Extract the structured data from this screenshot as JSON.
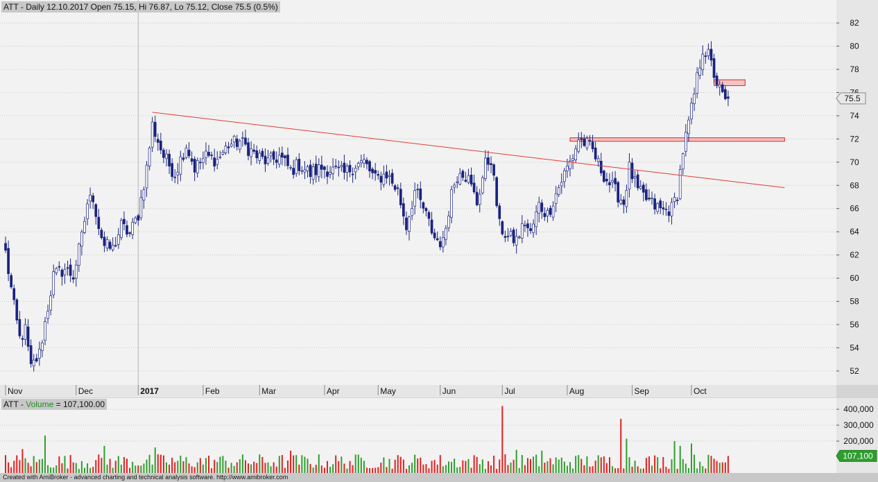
{
  "header": {
    "title": "ATT - Daily 12.10.2017 Open 75.15, Hi 76.87, Lo 75.12, Close 75.5 (0.5%)"
  },
  "volume_header": {
    "symbol": "ATT",
    "sep": " - ",
    "label": "Volume",
    "value_text": " = 107,100.00"
  },
  "status_bar": "Created with AmiBroker - advanced charting and technical analysis software. http://www.amibroker.com",
  "price_badge": "75.5",
  "volume_badge": "107,100",
  "colors": {
    "up_body": "#ffffff",
    "down_body": "#1a237e",
    "wick": "#1a237e",
    "trendline": "#e53935",
    "vol_up": "#2e9e2e",
    "vol_down": "#e02020",
    "grid": "#c9c9c9"
  },
  "chart_data": [
    {
      "type": "candlestick",
      "title": "ATT - Daily 12.10.2017 Open 75.15, Hi 76.87, Lo 75.12, Close 75.5 (0.5%)",
      "ylim": [
        50.8,
        83.5
      ],
      "y_ticks": [
        52,
        54,
        56,
        58,
        60,
        62,
        64,
        66,
        68,
        70,
        72,
        74,
        76,
        78,
        80,
        82
      ],
      "x_labels": [
        {
          "label": "Nov",
          "bar": 0,
          "bold": false
        },
        {
          "label": "Dec",
          "bar": 25,
          "bold": false
        },
        {
          "label": "2017",
          "bar": 47,
          "bold": true
        },
        {
          "label": "Feb",
          "bar": 70,
          "bold": false
        },
        {
          "label": "Mar",
          "bar": 90,
          "bold": false
        },
        {
          "label": "Apr",
          "bar": 113,
          "bold": false
        },
        {
          "label": "May",
          "bar": 132,
          "bold": false
        },
        {
          "label": "Jun",
          "bar": 154,
          "bold": false
        },
        {
          "label": "Jul",
          "bar": 176,
          "bold": false
        },
        {
          "label": "Aug",
          "bar": 199,
          "bold": false
        },
        {
          "label": "Sep",
          "bar": 222,
          "bold": false
        },
        {
          "label": "Oct",
          "bar": 243,
          "bold": false
        }
      ],
      "anchors": [
        {
          "bar": 0,
          "price": 62.2
        },
        {
          "bar": 3,
          "price": 57.5
        },
        {
          "bar": 5,
          "price": 54.8
        },
        {
          "bar": 7,
          "price": 55.5
        },
        {
          "bar": 9,
          "price": 52.2
        },
        {
          "bar": 12,
          "price": 53.5
        },
        {
          "bar": 15,
          "price": 57.5
        },
        {
          "bar": 17,
          "price": 60.2
        },
        {
          "bar": 21,
          "price": 60.8
        },
        {
          "bar": 24,
          "price": 60.2
        },
        {
          "bar": 27,
          "price": 63.5
        },
        {
          "bar": 29,
          "price": 66.5
        },
        {
          "bar": 31,
          "price": 67.0
        },
        {
          "bar": 33,
          "price": 64.5
        },
        {
          "bar": 35,
          "price": 62.8
        },
        {
          "bar": 38,
          "price": 62.5
        },
        {
          "bar": 41,
          "price": 64.5
        },
        {
          "bar": 44,
          "price": 63.8
        },
        {
          "bar": 47,
          "price": 65.5
        },
        {
          "bar": 50,
          "price": 69.5
        },
        {
          "bar": 52,
          "price": 73.2
        },
        {
          "bar": 56,
          "price": 70.5
        },
        {
          "bar": 60,
          "price": 69.0
        },
        {
          "bar": 64,
          "price": 71.5
        },
        {
          "bar": 67,
          "price": 69.5
        },
        {
          "bar": 71,
          "price": 70.5
        },
        {
          "bar": 75,
          "price": 70.2
        },
        {
          "bar": 79,
          "price": 71.5
        },
        {
          "bar": 83,
          "price": 71.8
        },
        {
          "bar": 86,
          "price": 71.2
        },
        {
          "bar": 89,
          "price": 70.5
        },
        {
          "bar": 93,
          "price": 70.0
        },
        {
          "bar": 97,
          "price": 70.5
        },
        {
          "bar": 101,
          "price": 69.3
        },
        {
          "bar": 104,
          "price": 69.8
        },
        {
          "bar": 108,
          "price": 69.0
        },
        {
          "bar": 112,
          "price": 69.5
        },
        {
          "bar": 116,
          "price": 69.3
        },
        {
          "bar": 120,
          "price": 69.0
        },
        {
          "bar": 124,
          "price": 69.8
        },
        {
          "bar": 127,
          "price": 70.0
        },
        {
          "bar": 131,
          "price": 68.5
        },
        {
          "bar": 135,
          "price": 69.0
        },
        {
          "bar": 139,
          "price": 67.5
        },
        {
          "bar": 142,
          "price": 64.5
        },
        {
          "bar": 145,
          "price": 67.5
        },
        {
          "bar": 148,
          "price": 66.0
        },
        {
          "bar": 152,
          "price": 63.5
        },
        {
          "bar": 155,
          "price": 63.0
        },
        {
          "bar": 158,
          "price": 67.5
        },
        {
          "bar": 161,
          "price": 69.5
        },
        {
          "bar": 164,
          "price": 68.5
        },
        {
          "bar": 167,
          "price": 66.5
        },
        {
          "bar": 170,
          "price": 69.8
        },
        {
          "bar": 172,
          "price": 70.3
        },
        {
          "bar": 175,
          "price": 64.5
        },
        {
          "bar": 178,
          "price": 63.5
        },
        {
          "bar": 181,
          "price": 63.3
        },
        {
          "bar": 184,
          "price": 64.8
        },
        {
          "bar": 186,
          "price": 63.8
        },
        {
          "bar": 189,
          "price": 66.3
        },
        {
          "bar": 192,
          "price": 65.5
        },
        {
          "bar": 195,
          "price": 67.3
        },
        {
          "bar": 198,
          "price": 69.0
        },
        {
          "bar": 201,
          "price": 70.5
        },
        {
          "bar": 203,
          "price": 72.0
        },
        {
          "bar": 206,
          "price": 71.5
        },
        {
          "bar": 208,
          "price": 71.0
        },
        {
          "bar": 210,
          "price": 69.8
        },
        {
          "bar": 213,
          "price": 68.5
        },
        {
          "bar": 216,
          "price": 67.5
        },
        {
          "bar": 219,
          "price": 66.5
        },
        {
          "bar": 221,
          "price": 69.5
        },
        {
          "bar": 224,
          "price": 67.5
        },
        {
          "bar": 227,
          "price": 66.8
        },
        {
          "bar": 230,
          "price": 66.2
        },
        {
          "bar": 233,
          "price": 65.8
        },
        {
          "bar": 236,
          "price": 66.0
        },
        {
          "bar": 238,
          "price": 67.3
        },
        {
          "bar": 240,
          "price": 71.0
        },
        {
          "bar": 243,
          "price": 74.5
        },
        {
          "bar": 245,
          "price": 77.2
        },
        {
          "bar": 247,
          "price": 79.8
        },
        {
          "bar": 249,
          "price": 79.2
        },
        {
          "bar": 251,
          "price": 77.6
        },
        {
          "bar": 253,
          "price": 76.2
        },
        {
          "bar": 255,
          "price": 75.2
        },
        {
          "bar": 256,
          "price": 75.5
        }
      ],
      "trendlines": [
        {
          "from_bar": 52,
          "from_price": 74.3,
          "to_bar": 276,
          "to_price": 67.8
        }
      ],
      "zones": [
        {
          "from_bar": 200,
          "to_bar": 276,
          "top": 72.1,
          "bottom": 71.8
        },
        {
          "from_bar": 251,
          "to_bar": 262,
          "top": 77.1,
          "bottom": 76.6
        }
      ],
      "last_close": 75.5
    },
    {
      "type": "bar",
      "title": "ATT - Volume = 107,100.00",
      "ylim": [
        0,
        470000
      ],
      "y_ticks": [
        {
          "value": 400000,
          "label": "400,000"
        },
        {
          "value": 300000,
          "label": "300,000"
        },
        {
          "value": 200000,
          "label": "200,000"
        }
      ],
      "spikes": [
        {
          "bar": 176,
          "value": 420000,
          "up": false
        },
        {
          "bar": 218,
          "value": 340000,
          "up": false
        },
        {
          "bar": 14,
          "value": 235000,
          "up": true
        },
        {
          "bar": 220,
          "value": 215000,
          "up": true
        },
        {
          "bar": 237,
          "value": 200000,
          "up": true
        },
        {
          "bar": 243,
          "value": 185000,
          "up": true
        },
        {
          "bar": 239,
          "value": 170000,
          "up": true
        },
        {
          "bar": 35,
          "value": 170000,
          "up": true
        },
        {
          "bar": 53,
          "value": 160000,
          "up": true
        },
        {
          "bar": 6,
          "value": 150000,
          "up": false
        },
        {
          "bar": 181,
          "value": 145000,
          "up": true
        },
        {
          "bar": 101,
          "value": 140000,
          "up": false
        },
        {
          "bar": 190,
          "value": 140000,
          "up": true
        }
      ],
      "last_value": 107100
    }
  ]
}
